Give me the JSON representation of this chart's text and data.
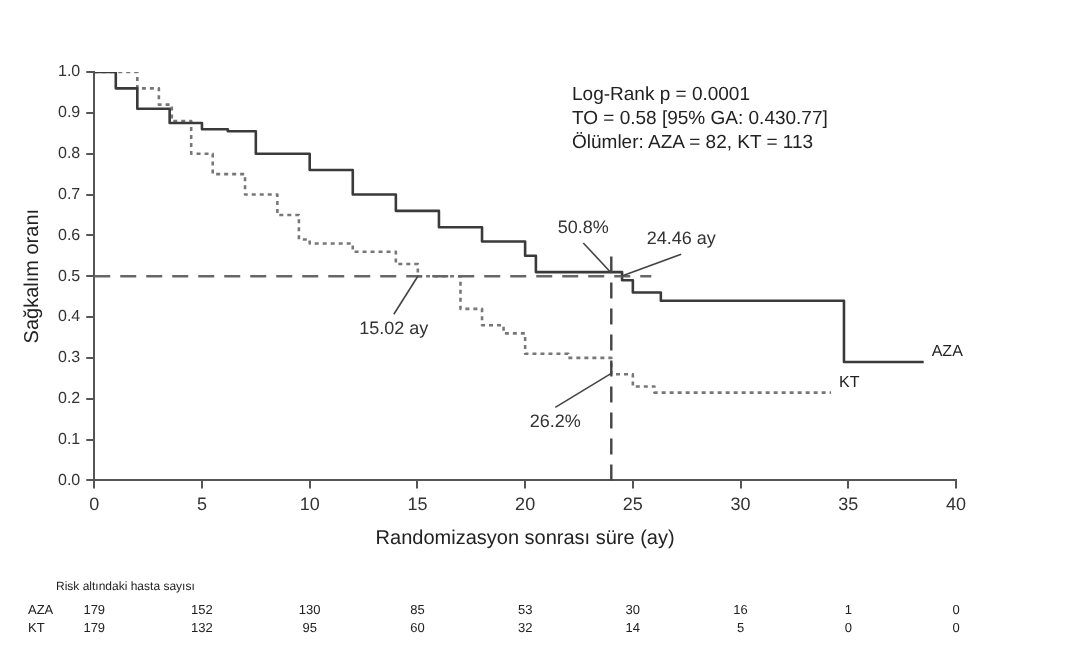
{
  "chart_data": {
    "type": "step",
    "xlabel": "Randomizasyon sonrası süre (ay)",
    "ylabel": "Sağkalım oranı",
    "xlim": [
      0,
      40
    ],
    "xticks": [
      0,
      5,
      10,
      15,
      20,
      25,
      30,
      35,
      40
    ],
    "ylim": [
      0,
      1
    ],
    "yticks": [
      {
        "value": 0,
        "label": "0.0"
      },
      {
        "value": 0.1,
        "label": "0.1"
      },
      {
        "value": 0.2,
        "label": "0.2"
      },
      {
        "value": 0.3,
        "label": "0.3"
      },
      {
        "value": 0.4,
        "label": "0.4"
      },
      {
        "value": 0.5,
        "label": "0.5"
      },
      {
        "value": 0.6,
        "label": "0.6"
      },
      {
        "value": 0.7,
        "label": "0.7"
      },
      {
        "value": 0.8,
        "label": "0.8"
      },
      {
        "value": 0.9,
        "label": "0.9"
      },
      {
        "value": 1,
        "label": "1.0"
      }
    ],
    "grid": false,
    "legend": false,
    "marker": "none",
    "series": [
      {
        "name": "AZA",
        "color": "#3a3a3a",
        "line_style": "solid",
        "x": [
          0,
          1,
          2,
          3.5,
          5,
          6.2,
          7.5,
          10,
          12,
          14,
          16,
          18,
          20,
          20.5,
          24.5,
          25,
          26.3,
          34.8,
          38.5
        ],
        "values": [
          1,
          0.96,
          0.91,
          0.875,
          0.86,
          0.855,
          0.8,
          0.76,
          0.7,
          0.66,
          0.62,
          0.585,
          0.55,
          0.51,
          0.49,
          0.46,
          0.44,
          0.29,
          0.29
        ]
      },
      {
        "name": "KT",
        "color": "#777777",
        "line_style": "dotted",
        "x": [
          0,
          1,
          2,
          3,
          3.6,
          4.5,
          5.5,
          7,
          8.5,
          9.5,
          10,
          12,
          14,
          15.02,
          17,
          18,
          19,
          20,
          22,
          24,
          25,
          26,
          34.2
        ],
        "values": [
          1,
          1,
          0.96,
          0.92,
          0.88,
          0.8,
          0.75,
          0.7,
          0.65,
          0.59,
          0.58,
          0.56,
          0.53,
          0.5,
          0.42,
          0.38,
          0.36,
          0.31,
          0.3,
          0.26,
          0.23,
          0.215,
          0.215
        ]
      }
    ],
    "ref_lines": [
      {
        "axis": "y",
        "value": 0.5,
        "color": "#666666",
        "line_style": "dashed"
      },
      {
        "axis": "x",
        "value": 24,
        "color": "#444444",
        "line_style": "dashed"
      }
    ],
    "annotations": [
      "Log-Rank p = 0.0001",
      "TO = 0.58 [95% GA: 0.430.77]",
      "Ölümler: AZA = 82, KT = 113",
      {
        "text": "50.8%",
        "x": 24,
        "y": 0.508
      },
      {
        "text": "24.46 ay",
        "x": 24.46,
        "y": 0.5
      },
      {
        "text": "15.02 ay",
        "x": 15.02,
        "y": 0.5
      },
      {
        "text": "26.2%",
        "x": 24,
        "y": 0.262
      },
      "Risk altındaki hasta sayısı",
      "AZA 179 152 130 85 53 30 16 1 0",
      "KT 179 132 95 60 32 14 5 0 0"
    ]
  }
}
